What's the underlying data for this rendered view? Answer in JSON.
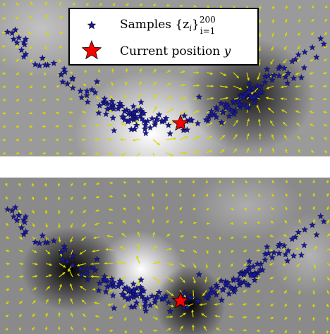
{
  "chart_data": [
    {
      "type": "scatter",
      "panel": "top",
      "background": "grayscale field with yellow vector arrows",
      "series": [
        {
          "name": "Samples {z_i}_{i=1}^{200}",
          "marker": "star",
          "color": "#1a1a8c",
          "count": 200
        },
        {
          "name": "Current position y",
          "marker": "star",
          "color": "#ff0000",
          "points": [
            [
              256,
              175
            ]
          ]
        }
      ],
      "legend": {
        "placement": "top-center",
        "entries": [
          {
            "label_main": "Samples ",
            "label_math": "{z",
            "label_sub": "i",
            "label_math2": "}",
            "label_sup": "200",
            "label_sub2": "i=1",
            "marker": "small-blue-star"
          },
          {
            "label_main": "Current position ",
            "label_math": "y",
            "marker": "big-red-star"
          }
        ]
      },
      "arrow_color": "#d8d800",
      "grid": false
    },
    {
      "type": "scatter",
      "panel": "bottom",
      "background": "grayscale field with yellow vector arrows",
      "series": [
        {
          "name": "Samples",
          "marker": "star",
          "color": "#1a1a8c",
          "count": 200
        },
        {
          "name": "Current position",
          "marker": "star",
          "color": "#ff0000",
          "points": [
            [
              256,
              175
            ]
          ]
        }
      ],
      "arrow_color": "#d8d800",
      "grid": false
    }
  ]
}
